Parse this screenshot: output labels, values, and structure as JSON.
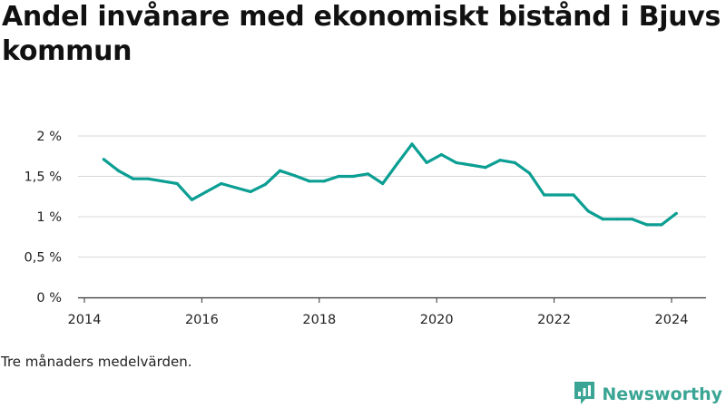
{
  "title": "Andel invånare med ekonomiskt bistånd i Bjuvs kommun",
  "note": "Tre månaders medelvärden.",
  "brand": {
    "name": "Newsworthy",
    "color": "#3aa594",
    "icon": "newsworthy-logo-icon"
  },
  "colors": {
    "line": "#0b9e93",
    "grid": "#d9d9d9",
    "axis": "#333333",
    "text": "#222222"
  },
  "chart_data": {
    "type": "line",
    "title": "Andel invånare med ekonomiskt bistånd i Bjuvs kommun",
    "xlabel": "",
    "ylabel": "",
    "x_ticks": [
      "2014",
      "2016",
      "2018",
      "2020",
      "2022",
      "2024"
    ],
    "y_ticks": [
      "0 %",
      "0,5 %",
      "1 %",
      "1,5 %",
      "2 %"
    ],
    "xlim": [
      2014,
      2024.6
    ],
    "ylim": [
      0,
      2
    ],
    "grid": true,
    "legend": "none",
    "series": [
      {
        "values": [
          {
            "x": 2014.33,
            "y": 1.71
          },
          {
            "x": 2014.58,
            "y": 1.57
          },
          {
            "x": 2014.83,
            "y": 1.47
          },
          {
            "x": 2015.08,
            "y": 1.47
          },
          {
            "x": 2015.33,
            "y": 1.44
          },
          {
            "x": 2015.58,
            "y": 1.41
          },
          {
            "x": 2015.83,
            "y": 1.21
          },
          {
            "x": 2016.08,
            "y": 1.31
          },
          {
            "x": 2016.33,
            "y": 1.41
          },
          {
            "x": 2016.58,
            "y": 1.36
          },
          {
            "x": 2016.83,
            "y": 1.31
          },
          {
            "x": 2017.08,
            "y": 1.4
          },
          {
            "x": 2017.33,
            "y": 1.57
          },
          {
            "x": 2017.58,
            "y": 1.51
          },
          {
            "x": 2017.83,
            "y": 1.44
          },
          {
            "x": 2018.08,
            "y": 1.44
          },
          {
            "x": 2018.33,
            "y": 1.5
          },
          {
            "x": 2018.58,
            "y": 1.5
          },
          {
            "x": 2018.83,
            "y": 1.53
          },
          {
            "x": 2019.08,
            "y": 1.41
          },
          {
            "x": 2019.33,
            "y": 1.66
          },
          {
            "x": 2019.58,
            "y": 1.9
          },
          {
            "x": 2019.83,
            "y": 1.67
          },
          {
            "x": 2020.08,
            "y": 1.77
          },
          {
            "x": 2020.33,
            "y": 1.67
          },
          {
            "x": 2020.58,
            "y": 1.64
          },
          {
            "x": 2020.83,
            "y": 1.61
          },
          {
            "x": 2021.08,
            "y": 1.7
          },
          {
            "x": 2021.33,
            "y": 1.67
          },
          {
            "x": 2021.58,
            "y": 1.54
          },
          {
            "x": 2021.83,
            "y": 1.27
          },
          {
            "x": 2022.08,
            "y": 1.27
          },
          {
            "x": 2022.33,
            "y": 1.27
          },
          {
            "x": 2022.58,
            "y": 1.07
          },
          {
            "x": 2022.83,
            "y": 0.97
          },
          {
            "x": 2023.08,
            "y": 0.97
          },
          {
            "x": 2023.33,
            "y": 0.97
          },
          {
            "x": 2023.58,
            "y": 0.9
          },
          {
            "x": 2023.83,
            "y": 0.9
          },
          {
            "x": 2024.08,
            "y": 1.04
          }
        ]
      }
    ]
  }
}
